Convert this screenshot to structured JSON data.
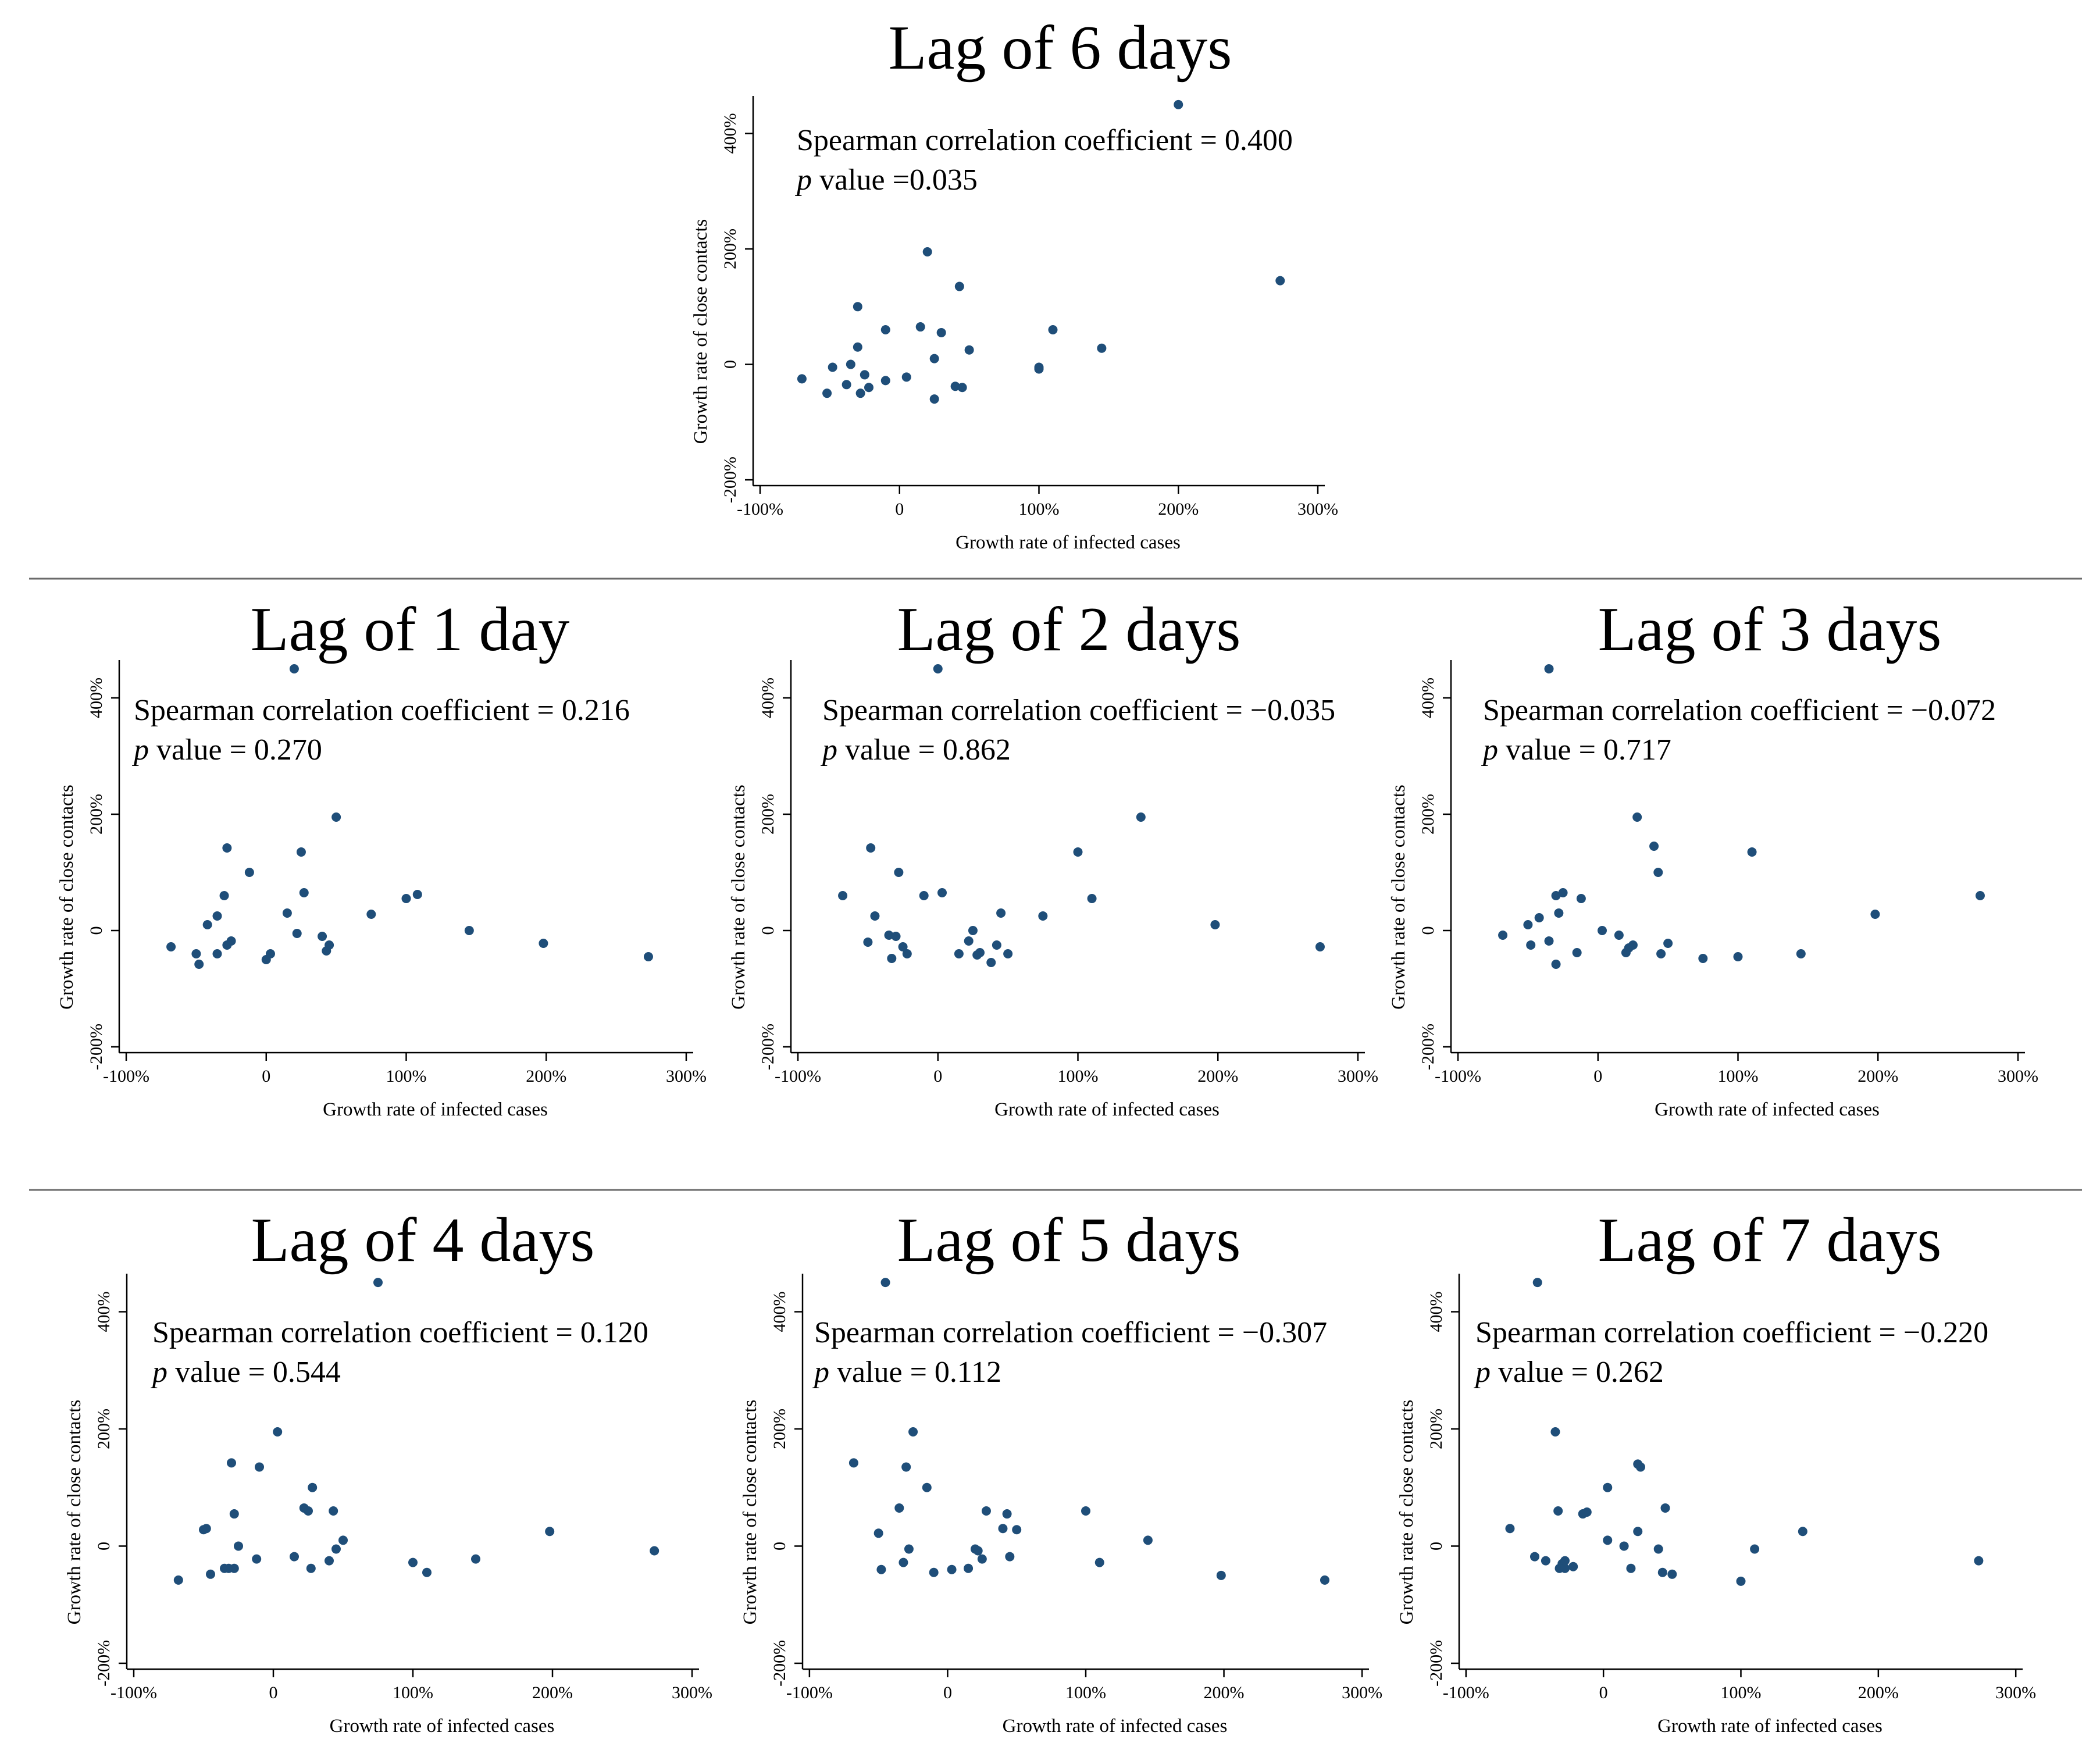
{
  "chart_data": [
    {
      "id": "lag6",
      "type": "scatter",
      "title": "Lag of 6 days",
      "stat_line": "Spearman correlation coefficient = 0.400",
      "p_prefix": "p",
      "p_rest": " value =0.035",
      "xlabel": "Growth rate of infected cases",
      "ylabel": "Growth rate of close contacts",
      "xlim": [
        -105,
        305
      ],
      "ylim": [
        -210,
        465
      ],
      "x_ticks": [
        {
          "v": -100,
          "label": "-100%"
        },
        {
          "v": 0,
          "label": "0"
        },
        {
          "v": 100,
          "label": "100%"
        },
        {
          "v": 200,
          "label": "200%"
        },
        {
          "v": 300,
          "label": "300%"
        }
      ],
      "y_ticks": [
        {
          "v": -200,
          "label": "-200%"
        },
        {
          "v": 0,
          "label": "0"
        },
        {
          "v": 200,
          "label": "200%"
        },
        {
          "v": 400,
          "label": "400%"
        }
      ],
      "points": [
        [
          -70,
          -25
        ],
        [
          -52,
          -50
        ],
        [
          -48,
          -5
        ],
        [
          -38,
          -35
        ],
        [
          -35,
          0
        ],
        [
          -30,
          100
        ],
        [
          -30,
          30
        ],
        [
          -28,
          -50
        ],
        [
          -25,
          -18
        ],
        [
          -22,
          -40
        ],
        [
          -10,
          60
        ],
        [
          -10,
          -28
        ],
        [
          5,
          -22
        ],
        [
          15,
          65
        ],
        [
          20,
          195
        ],
        [
          25,
          -60
        ],
        [
          25,
          10
        ],
        [
          30,
          55
        ],
        [
          40,
          -38
        ],
        [
          43,
          135
        ],
        [
          45,
          -40
        ],
        [
          50,
          25
        ],
        [
          100,
          -5
        ],
        [
          100,
          -8
        ],
        [
          110,
          60
        ],
        [
          145,
          28
        ],
        [
          200,
          450
        ],
        [
          273,
          145
        ]
      ]
    },
    {
      "id": "lag1",
      "type": "scatter",
      "title": "Lag of 1 day",
      "stat_line": "Spearman correlation coefficient = 0.216",
      "p_prefix": "p",
      "p_rest": " value = 0.270",
      "xlabel": "Growth rate of infected cases",
      "ylabel": "Growth rate of close contacts",
      "xlim": [
        -105,
        305
      ],
      "ylim": [
        -210,
        465
      ],
      "x_ticks": [
        {
          "v": -100,
          "label": "-100%"
        },
        {
          "v": 0,
          "label": "0"
        },
        {
          "v": 100,
          "label": "100%"
        },
        {
          "v": 200,
          "label": "200%"
        },
        {
          "v": 300,
          "label": "300%"
        }
      ],
      "y_ticks": [
        {
          "v": -200,
          "label": "-200%"
        },
        {
          "v": 0,
          "label": "0"
        },
        {
          "v": 200,
          "label": "200%"
        },
        {
          "v": 400,
          "label": "400%"
        }
      ],
      "points": [
        [
          -68,
          -28
        ],
        [
          -50,
          -40
        ],
        [
          -48,
          -58
        ],
        [
          -42,
          10
        ],
        [
          -35,
          25
        ],
        [
          -35,
          -40
        ],
        [
          -30,
          60
        ],
        [
          -28,
          142
        ],
        [
          -28,
          -25
        ],
        [
          -25,
          -18
        ],
        [
          -12,
          100
        ],
        [
          0,
          -50
        ],
        [
          3,
          -40
        ],
        [
          15,
          30
        ],
        [
          20,
          450
        ],
        [
          22,
          -5
        ],
        [
          25,
          135
        ],
        [
          27,
          65
        ],
        [
          40,
          -10
        ],
        [
          43,
          -35
        ],
        [
          45,
          -25
        ],
        [
          50,
          195
        ],
        [
          75,
          28
        ],
        [
          100,
          55
        ],
        [
          108,
          62
        ],
        [
          145,
          0
        ],
        [
          198,
          -22
        ],
        [
          273,
          -45
        ]
      ]
    },
    {
      "id": "lag2",
      "type": "scatter",
      "title": "Lag of 2 days",
      "stat_line": "Spearman correlation coefficient = −0.035",
      "p_prefix": "p",
      "p_rest": " value = 0.862",
      "xlabel": "Growth rate of infected cases",
      "ylabel": "Growth rate of close contacts",
      "xlim": [
        -105,
        305
      ],
      "ylim": [
        -210,
        465
      ],
      "x_ticks": [
        {
          "v": -100,
          "label": "-100%"
        },
        {
          "v": 0,
          "label": "0"
        },
        {
          "v": 100,
          "label": "100%"
        },
        {
          "v": 200,
          "label": "200%"
        },
        {
          "v": 300,
          "label": "300%"
        }
      ],
      "y_ticks": [
        {
          "v": -200,
          "label": "-200%"
        },
        {
          "v": 0,
          "label": "0"
        },
        {
          "v": 200,
          "label": "200%"
        },
        {
          "v": 400,
          "label": "400%"
        }
      ],
      "points": [
        [
          -68,
          60
        ],
        [
          -50,
          -20
        ],
        [
          -48,
          142
        ],
        [
          -45,
          25
        ],
        [
          -35,
          -8
        ],
        [
          -33,
          -48
        ],
        [
          -30,
          -10
        ],
        [
          -28,
          100
        ],
        [
          -25,
          -28
        ],
        [
          -22,
          -40
        ],
        [
          -10,
          60
        ],
        [
          0,
          450
        ],
        [
          3,
          65
        ],
        [
          15,
          -40
        ],
        [
          22,
          -18
        ],
        [
          25,
          0
        ],
        [
          28,
          -42
        ],
        [
          30,
          -38
        ],
        [
          38,
          -55
        ],
        [
          42,
          -25
        ],
        [
          45,
          30
        ],
        [
          50,
          -40
        ],
        [
          75,
          25
        ],
        [
          100,
          135
        ],
        [
          110,
          55
        ],
        [
          145,
          195
        ],
        [
          198,
          10
        ],
        [
          273,
          -28
        ]
      ]
    },
    {
      "id": "lag3",
      "type": "scatter",
      "title": "Lag of 3 days",
      "stat_line": "Spearman correlation coefficient = −0.072",
      "p_prefix": "p",
      "p_rest": " value = 0.717",
      "xlabel": "Growth rate of infected cases",
      "ylabel": "Growth rate of close contacts",
      "xlim": [
        -105,
        305
      ],
      "ylim": [
        -210,
        465
      ],
      "x_ticks": [
        {
          "v": -100,
          "label": "-100%"
        },
        {
          "v": 0,
          "label": "0"
        },
        {
          "v": 100,
          "label": "100%"
        },
        {
          "v": 200,
          "label": "200%"
        },
        {
          "v": 300,
          "label": "300%"
        }
      ],
      "y_ticks": [
        {
          "v": -200,
          "label": "-200%"
        },
        {
          "v": 0,
          "label": "0"
        },
        {
          "v": 200,
          "label": "200%"
        },
        {
          "v": 400,
          "label": "400%"
        }
      ],
      "points": [
        [
          -68,
          -8
        ],
        [
          -50,
          10
        ],
        [
          -48,
          -25
        ],
        [
          -42,
          22
        ],
        [
          -35,
          450
        ],
        [
          -35,
          -18
        ],
        [
          -30,
          -58
        ],
        [
          -30,
          60
        ],
        [
          -28,
          30
        ],
        [
          -25,
          65
        ],
        [
          -15,
          -38
        ],
        [
          -12,
          55
        ],
        [
          3,
          0
        ],
        [
          15,
          -8
        ],
        [
          20,
          -38
        ],
        [
          22,
          -30
        ],
        [
          25,
          -25
        ],
        [
          28,
          195
        ],
        [
          40,
          145
        ],
        [
          43,
          100
        ],
        [
          45,
          -40
        ],
        [
          50,
          -22
        ],
        [
          75,
          -48
        ],
        [
          100,
          -45
        ],
        [
          110,
          135
        ],
        [
          145,
          -40
        ],
        [
          198,
          28
        ],
        [
          273,
          60
        ]
      ]
    },
    {
      "id": "lag4",
      "type": "scatter",
      "title": "Lag of 4 days",
      "stat_line": "Spearman correlation coefficient = 0.120",
      "p_prefix": "p",
      "p_rest": " value = 0.544",
      "xlabel": "Growth rate of infected cases",
      "ylabel": "Growth rate of close contacts",
      "xlim": [
        -105,
        305
      ],
      "ylim": [
        -210,
        465
      ],
      "x_ticks": [
        {
          "v": -100,
          "label": "-100%"
        },
        {
          "v": 0,
          "label": "0"
        },
        {
          "v": 100,
          "label": "100%"
        },
        {
          "v": 200,
          "label": "200%"
        },
        {
          "v": 300,
          "label": "300%"
        }
      ],
      "y_ticks": [
        {
          "v": -200,
          "label": "-200%"
        },
        {
          "v": 0,
          "label": "0"
        },
        {
          "v": 200,
          "label": "200%"
        },
        {
          "v": 400,
          "label": "400%"
        }
      ],
      "points": [
        [
          -68,
          -58
        ],
        [
          -50,
          28
        ],
        [
          -48,
          30
        ],
        [
          -45,
          -48
        ],
        [
          -35,
          -38
        ],
        [
          -32,
          -38
        ],
        [
          -30,
          142
        ],
        [
          -28,
          55
        ],
        [
          -28,
          -38
        ],
        [
          -25,
          0
        ],
        [
          -12,
          -22
        ],
        [
          -10,
          135
        ],
        [
          3,
          195
        ],
        [
          15,
          -18
        ],
        [
          22,
          65
        ],
        [
          25,
          60
        ],
        [
          27,
          -38
        ],
        [
          28,
          100
        ],
        [
          40,
          -25
        ],
        [
          43,
          60
        ],
        [
          45,
          -5
        ],
        [
          50,
          10
        ],
        [
          75,
          450
        ],
        [
          100,
          -28
        ],
        [
          110,
          -45
        ],
        [
          145,
          -22
        ],
        [
          198,
          25
        ],
        [
          273,
          -8
        ]
      ]
    },
    {
      "id": "lag5",
      "type": "scatter",
      "title": "Lag of 5 days",
      "stat_line": "Spearman correlation coefficient = −0.307",
      "p_prefix": "p",
      "p_rest": " value = 0.112",
      "xlabel": "Growth rate of infected cases",
      "ylabel": "Growth rate of close contacts",
      "xlim": [
        -105,
        305
      ],
      "ylim": [
        -210,
        465
      ],
      "x_ticks": [
        {
          "v": -100,
          "label": "-100%"
        },
        {
          "v": 0,
          "label": "0"
        },
        {
          "v": 100,
          "label": "100%"
        },
        {
          "v": 200,
          "label": "200%"
        },
        {
          "v": 300,
          "label": "300%"
        }
      ],
      "y_ticks": [
        {
          "v": -200,
          "label": "-200%"
        },
        {
          "v": 0,
          "label": "0"
        },
        {
          "v": 200,
          "label": "200%"
        },
        {
          "v": 400,
          "label": "400%"
        }
      ],
      "points": [
        [
          -68,
          142
        ],
        [
          -50,
          22
        ],
        [
          -48,
          -40
        ],
        [
          -45,
          450
        ],
        [
          -35,
          65
        ],
        [
          -32,
          -28
        ],
        [
          -30,
          135
        ],
        [
          -28,
          -5
        ],
        [
          -25,
          195
        ],
        [
          -15,
          100
        ],
        [
          -10,
          -45
        ],
        [
          3,
          -40
        ],
        [
          15,
          -38
        ],
        [
          20,
          -5
        ],
        [
          22,
          -8
        ],
        [
          25,
          -22
        ],
        [
          28,
          60
        ],
        [
          40,
          30
        ],
        [
          43,
          55
        ],
        [
          45,
          -18
        ],
        [
          50,
          28
        ],
        [
          100,
          60
        ],
        [
          110,
          -28
        ],
        [
          145,
          10
        ],
        [
          198,
          -50
        ],
        [
          273,
          -58
        ]
      ]
    },
    {
      "id": "lag7",
      "type": "scatter",
      "title": "Lag of 7 days",
      "stat_line": "Spearman correlation coefficient = −0.220",
      "p_prefix": "p",
      "p_rest": " value = 0.262",
      "xlabel": "Growth rate of infected cases",
      "ylabel": "Growth rate of close contacts",
      "xlim": [
        -105,
        305
      ],
      "ylim": [
        -210,
        465
      ],
      "x_ticks": [
        {
          "v": -100,
          "label": "-100%"
        },
        {
          "v": 0,
          "label": "0"
        },
        {
          "v": 100,
          "label": "100%"
        },
        {
          "v": 200,
          "label": "200%"
        },
        {
          "v": 300,
          "label": "300%"
        }
      ],
      "y_ticks": [
        {
          "v": -200,
          "label": "-200%"
        },
        {
          "v": 0,
          "label": "0"
        },
        {
          "v": 200,
          "label": "200%"
        },
        {
          "v": 400,
          "label": "400%"
        }
      ],
      "points": [
        [
          -68,
          30
        ],
        [
          -50,
          -18
        ],
        [
          -48,
          450
        ],
        [
          -42,
          -25
        ],
        [
          -35,
          195
        ],
        [
          -33,
          60
        ],
        [
          -32,
          -38
        ],
        [
          -30,
          -30
        ],
        [
          -28,
          -38
        ],
        [
          -28,
          -25
        ],
        [
          -22,
          -35
        ],
        [
          -15,
          55
        ],
        [
          -12,
          58
        ],
        [
          3,
          100
        ],
        [
          3,
          10
        ],
        [
          15,
          0
        ],
        [
          20,
          -38
        ],
        [
          25,
          140
        ],
        [
          27,
          135
        ],
        [
          25,
          25
        ],
        [
          40,
          -5
        ],
        [
          43,
          -45
        ],
        [
          45,
          65
        ],
        [
          50,
          -48
        ],
        [
          100,
          -60
        ],
        [
          110,
          -5
        ],
        [
          145,
          25
        ],
        [
          273,
          -25
        ]
      ]
    }
  ]
}
